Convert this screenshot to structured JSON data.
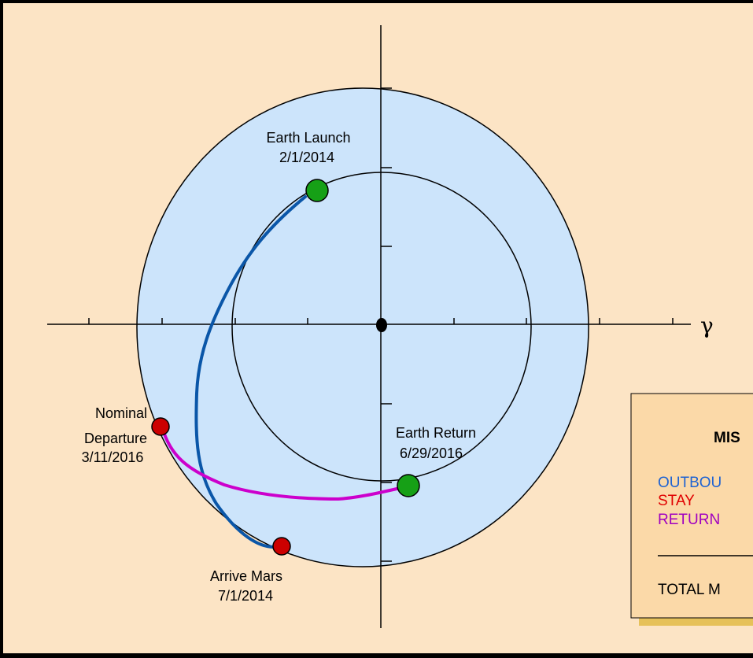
{
  "colors": {
    "frame_background": "#FCE4C5",
    "outer_border": "#000000",
    "mars_orbit_fill": "#CCE4FB",
    "outbound_trajectory": "#0A56A8",
    "return_trajectory": "#CC00CC",
    "earth_marker": "#16A016",
    "mars_marker": "#CC0000",
    "legend_fill": "#FBD9A8",
    "legend_shadow": "#E6C15A",
    "outbound_text": "#1F63D2",
    "stay_text": "#E00000",
    "return_text": "#A000C0"
  },
  "axis": {
    "x_label": "γ"
  },
  "events": {
    "earth_launch": {
      "name": "Earth Launch",
      "date": "2/1/2014",
      "marker": "earth-marker-icon"
    },
    "arrive_mars": {
      "name": "Arrive Mars",
      "date": "7/1/2014",
      "marker": "mars-marker-icon"
    },
    "nominal_departure": {
      "name_line1": "Nominal",
      "name_line2": "Departure",
      "date": "3/11/2016",
      "marker": "mars-marker-icon"
    },
    "earth_return": {
      "name": "Earth Return",
      "date": "6/29/2016",
      "marker": "earth-marker-icon"
    }
  },
  "legend": {
    "title": "MIS",
    "outbound": "OUTBOU",
    "stay": "STAY",
    "return": "RETURN",
    "total": "TOTAL M"
  }
}
